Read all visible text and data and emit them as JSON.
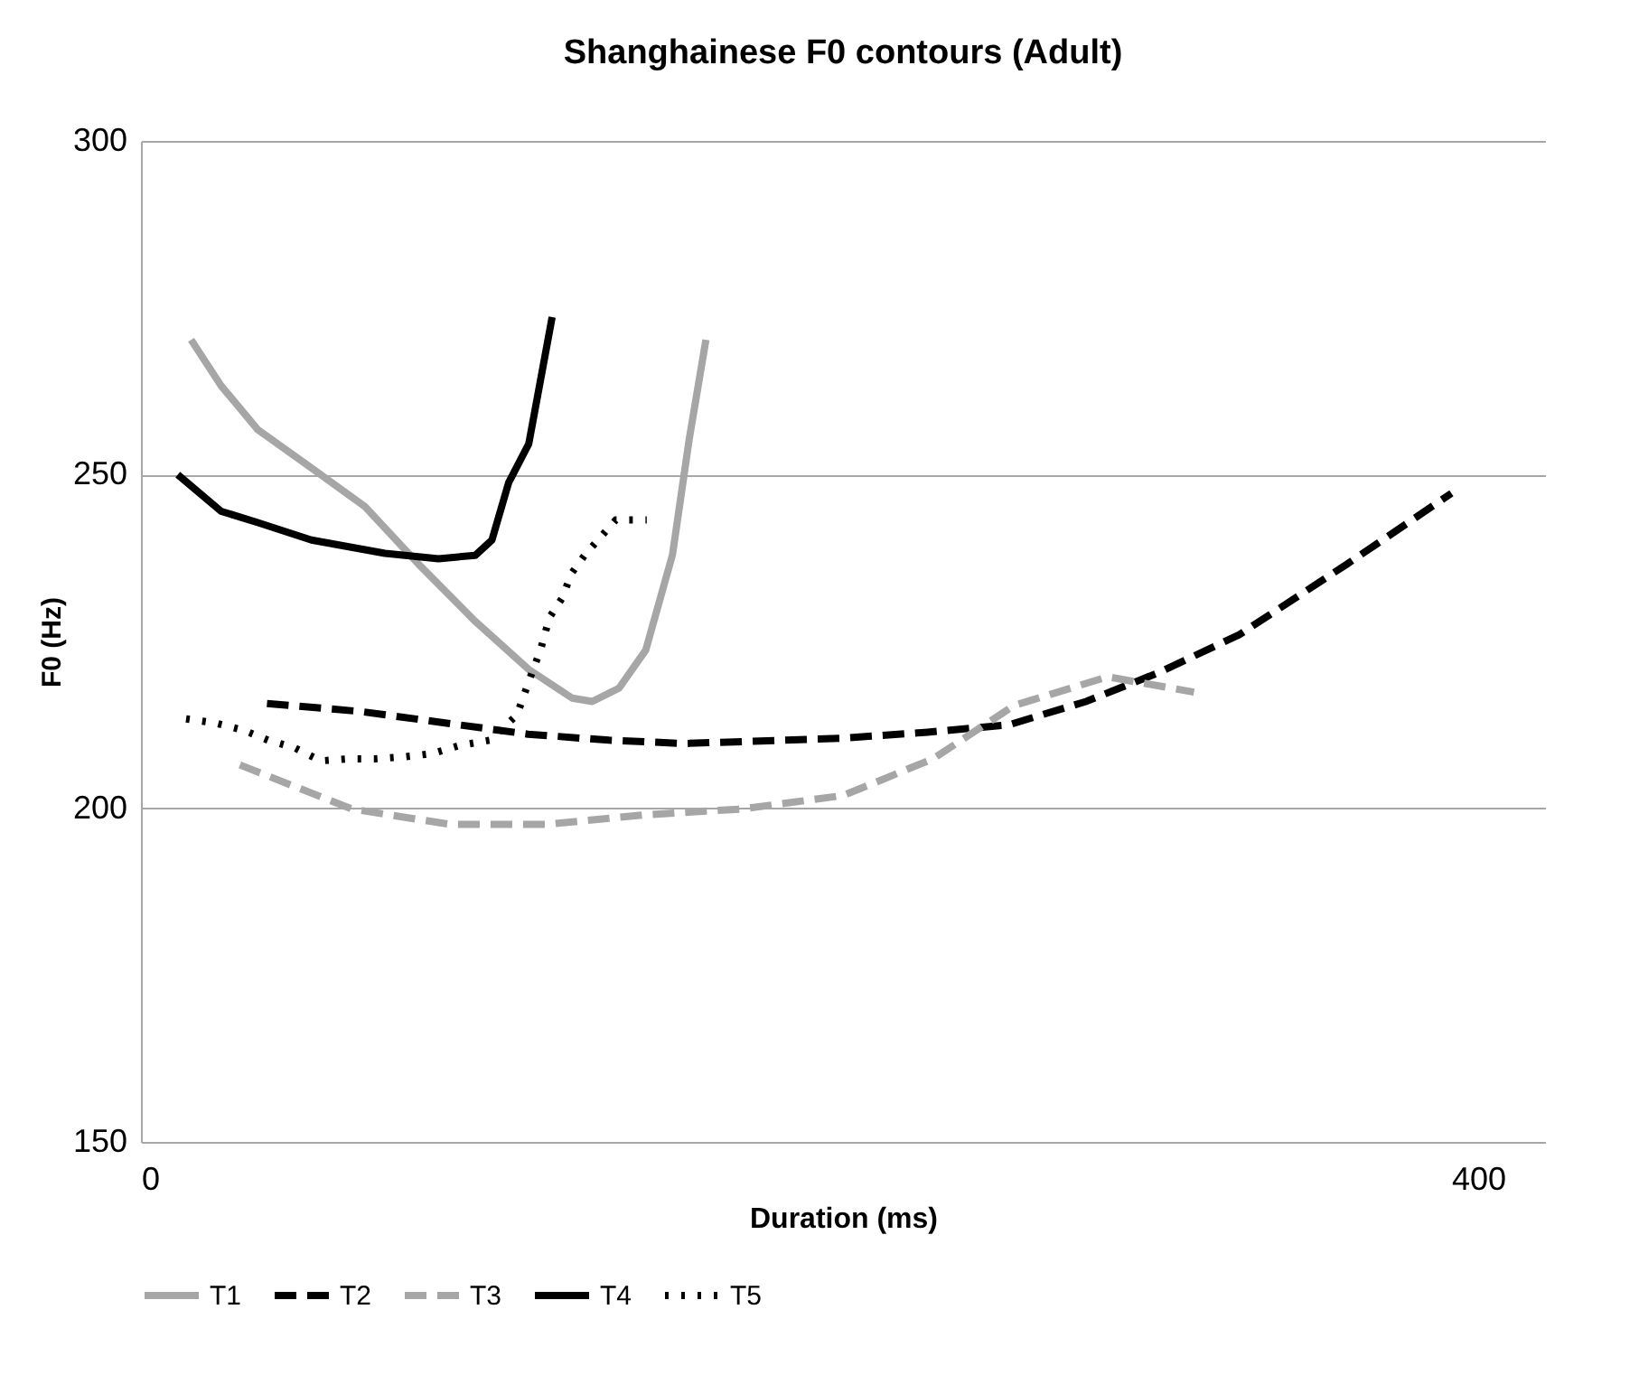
{
  "chart_data": {
    "type": "line",
    "title": "Shanghainese F0 contours (Adult)",
    "xlabel": "Duration (ms)",
    "ylabel": "F0 (Hz)",
    "xlim": [
      0,
      420
    ],
    "xticks": [
      0,
      400
    ],
    "ylim": [
      150,
      300
    ],
    "yticks": [
      150,
      200,
      250,
      300
    ],
    "grid": "y",
    "legend": "bottom",
    "marker": "none",
    "series": [
      {
        "name": "T1",
        "color": "#a6a6a6",
        "line_style": "solid",
        "x": [
          15,
          24,
          35,
          51,
          67,
          83,
          100,
          116,
          129,
          135,
          143,
          151,
          159,
          164,
          169
        ],
        "values": [
          270.2,
          263.3,
          256.7,
          251,
          245.2,
          236.6,
          228,
          220.8,
          216.5,
          216,
          218,
          223.7,
          238,
          255.3,
          270.2
        ]
      },
      {
        "name": "T2",
        "color": "#000000",
        "line_style": "dashed",
        "x": [
          37.7,
          65.7,
          115.8,
          140,
          162.6,
          210,
          235.3,
          259.6,
          282.7,
          304.3,
          328.5,
          360.8,
          392
        ],
        "values": [
          215.7,
          214.5,
          211.1,
          210.2,
          209.7,
          210.5,
          211.4,
          212.5,
          216,
          220.3,
          226,
          236.6,
          247.2
        ]
      },
      {
        "name": "T3",
        "color": "#a6a6a6",
        "line_style": "dashed",
        "x": [
          29.6,
          63,
          92.2,
          121.8,
          150.3,
          180,
          210,
          236.9,
          261.2,
          289.2,
          315
        ],
        "values": [
          206.5,
          199.9,
          197.6,
          197.6,
          199,
          199.9,
          201.9,
          207.4,
          215.4,
          219.7,
          217.4
        ]
      },
      {
        "name": "T4",
        "color": "#000000",
        "line_style": "solid",
        "x": [
          11,
          24,
          35,
          51,
          73,
          89,
          100,
          105,
          110,
          116,
          123
        ],
        "values": [
          250,
          244.5,
          242.8,
          240.2,
          238.2,
          237.4,
          237.9,
          240.2,
          248.8,
          254.6,
          273.6
        ]
      },
      {
        "name": "T5",
        "color": "#000000",
        "line_style": "dotted",
        "x": [
          13.5,
          22,
          30.7,
          38,
          45.8,
          53.8,
          61.9,
          70,
          78.6,
          87.2,
          95.2,
          104.4,
          112.5,
          116.3,
          119.5,
          122.2,
          126,
          128.8,
          133,
          142,
          151.3
        ],
        "values": [
          213.4,
          212.8,
          211.7,
          210.2,
          209.1,
          207.1,
          207.4,
          207.4,
          207.7,
          208.2,
          209.4,
          210.2,
          214,
          219.4,
          223.7,
          228.6,
          231.5,
          235.2,
          238.1,
          243.2,
          243.2
        ]
      }
    ]
  }
}
